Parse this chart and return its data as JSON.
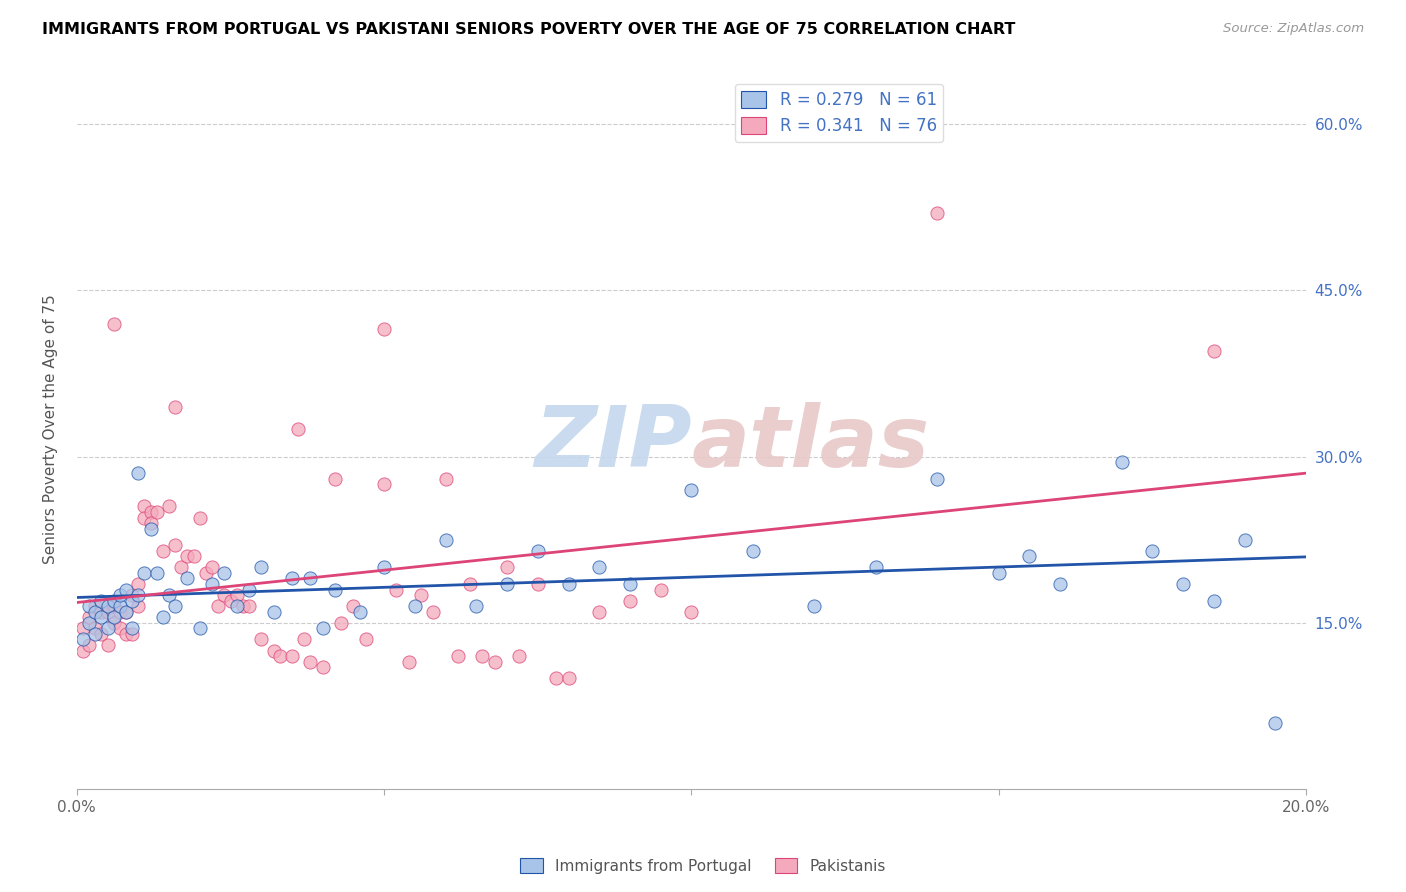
{
  "title": "IMMIGRANTS FROM PORTUGAL VS PAKISTANI SENIORS POVERTY OVER THE AGE OF 75 CORRELATION CHART",
  "source": "Source: ZipAtlas.com",
  "ylabel": "Seniors Poverty Over the Age of 75",
  "xlim": [
    0,
    0.2
  ],
  "ylim": [
    0.0,
    0.65
  ],
  "yticks": [
    0.15,
    0.3,
    0.45,
    0.6
  ],
  "ytick_labels": [
    "15.0%",
    "30.0%",
    "45.0%",
    "60.0%"
  ],
  "xticks": [
    0.0,
    0.05,
    0.1,
    0.15,
    0.2
  ],
  "xtick_labels": [
    "0.0%",
    "",
    "",
    "",
    "20.0%"
  ],
  "legend_r1": "R = 0.279   N = 61",
  "legend_r2": "R = 0.341   N = 76",
  "color_blue": "#A8C4E8",
  "color_pink": "#F4AABC",
  "trendline_blue": "#2255AA",
  "trendline_pink": "#DD4477",
  "watermark_zip": "ZIP",
  "watermark_atlas": "atlas",
  "watermark_color_zip": "#C8D8EE",
  "watermark_color_atlas": "#D8C8C8",
  "blue_x": [
    0.001,
    0.002,
    0.002,
    0.003,
    0.003,
    0.004,
    0.004,
    0.005,
    0.005,
    0.006,
    0.006,
    0.007,
    0.007,
    0.008,
    0.008,
    0.009,
    0.009,
    0.01,
    0.01,
    0.011,
    0.012,
    0.013,
    0.014,
    0.015,
    0.016,
    0.018,
    0.02,
    0.022,
    0.024,
    0.026,
    0.028,
    0.03,
    0.032,
    0.035,
    0.038,
    0.04,
    0.042,
    0.046,
    0.05,
    0.055,
    0.06,
    0.065,
    0.07,
    0.075,
    0.08,
    0.085,
    0.09,
    0.1,
    0.11,
    0.12,
    0.13,
    0.14,
    0.15,
    0.155,
    0.16,
    0.17,
    0.175,
    0.18,
    0.185,
    0.19,
    0.195
  ],
  "blue_y": [
    0.135,
    0.15,
    0.165,
    0.14,
    0.16,
    0.155,
    0.17,
    0.145,
    0.165,
    0.155,
    0.17,
    0.165,
    0.175,
    0.16,
    0.18,
    0.145,
    0.17,
    0.175,
    0.285,
    0.195,
    0.235,
    0.195,
    0.155,
    0.175,
    0.165,
    0.19,
    0.145,
    0.185,
    0.195,
    0.165,
    0.18,
    0.2,
    0.16,
    0.19,
    0.19,
    0.145,
    0.18,
    0.16,
    0.2,
    0.165,
    0.225,
    0.165,
    0.185,
    0.215,
    0.185,
    0.2,
    0.185,
    0.27,
    0.215,
    0.165,
    0.2,
    0.28,
    0.195,
    0.21,
    0.185,
    0.295,
    0.215,
    0.185,
    0.17,
    0.225,
    0.06
  ],
  "pink_x": [
    0.001,
    0.001,
    0.002,
    0.002,
    0.003,
    0.003,
    0.004,
    0.004,
    0.005,
    0.005,
    0.006,
    0.006,
    0.007,
    0.007,
    0.008,
    0.008,
    0.009,
    0.009,
    0.01,
    0.01,
    0.011,
    0.011,
    0.012,
    0.012,
    0.013,
    0.014,
    0.015,
    0.016,
    0.017,
    0.018,
    0.019,
    0.02,
    0.021,
    0.022,
    0.023,
    0.024,
    0.025,
    0.026,
    0.027,
    0.028,
    0.03,
    0.032,
    0.033,
    0.035,
    0.037,
    0.038,
    0.04,
    0.042,
    0.043,
    0.045,
    0.047,
    0.05,
    0.052,
    0.054,
    0.056,
    0.058,
    0.06,
    0.062,
    0.064,
    0.066,
    0.068,
    0.07,
    0.072,
    0.075,
    0.078,
    0.08,
    0.085,
    0.09,
    0.095,
    0.1,
    0.006,
    0.016,
    0.036,
    0.05,
    0.14,
    0.185
  ],
  "pink_y": [
    0.125,
    0.145,
    0.13,
    0.155,
    0.145,
    0.165,
    0.14,
    0.16,
    0.13,
    0.16,
    0.15,
    0.165,
    0.145,
    0.16,
    0.14,
    0.16,
    0.175,
    0.14,
    0.165,
    0.185,
    0.255,
    0.245,
    0.25,
    0.24,
    0.25,
    0.215,
    0.255,
    0.22,
    0.2,
    0.21,
    0.21,
    0.245,
    0.195,
    0.2,
    0.165,
    0.175,
    0.17,
    0.175,
    0.165,
    0.165,
    0.135,
    0.125,
    0.12,
    0.12,
    0.135,
    0.115,
    0.11,
    0.28,
    0.15,
    0.165,
    0.135,
    0.275,
    0.18,
    0.115,
    0.175,
    0.16,
    0.28,
    0.12,
    0.185,
    0.12,
    0.115,
    0.2,
    0.12,
    0.185,
    0.1,
    0.1,
    0.16,
    0.17,
    0.18,
    0.16,
    0.42,
    0.345,
    0.325,
    0.415,
    0.52,
    0.395
  ]
}
